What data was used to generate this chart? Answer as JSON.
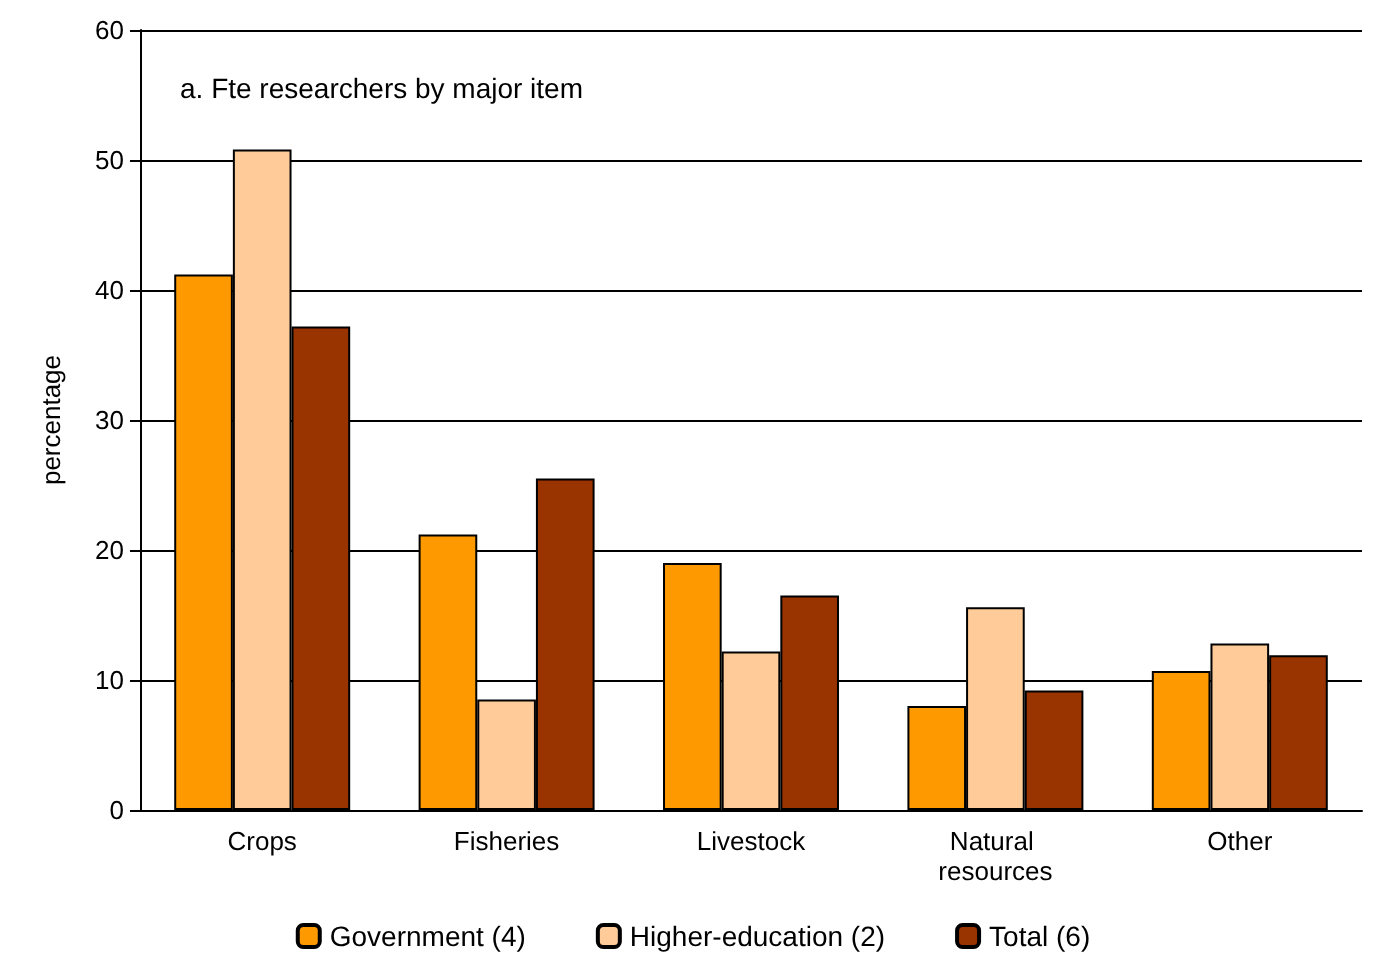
{
  "chart_data": {
    "type": "bar",
    "title": "a. Fte researchers by major item",
    "ylabel": "percentage",
    "categories": [
      "Crops",
      "Fisheries",
      "Livestock",
      "Natural resources",
      "Other"
    ],
    "series": [
      {
        "name": "Government (4)",
        "color": "#ff9900",
        "values": [
          41.2,
          21.2,
          19.0,
          8.0,
          10.7
        ]
      },
      {
        "name": "Higher-education (2)",
        "color": "#ffcc99",
        "values": [
          50.8,
          8.5,
          12.2,
          15.6,
          12.8
        ]
      },
      {
        "name": "Total (6)",
        "color": "#993300",
        "values": [
          37.2,
          25.5,
          16.5,
          9.2,
          11.9
        ]
      }
    ],
    "ylim": [
      0,
      60
    ],
    "yticks": [
      0,
      10,
      20,
      30,
      40,
      50,
      60
    ],
    "grid": "y",
    "legend": "bottom"
  }
}
